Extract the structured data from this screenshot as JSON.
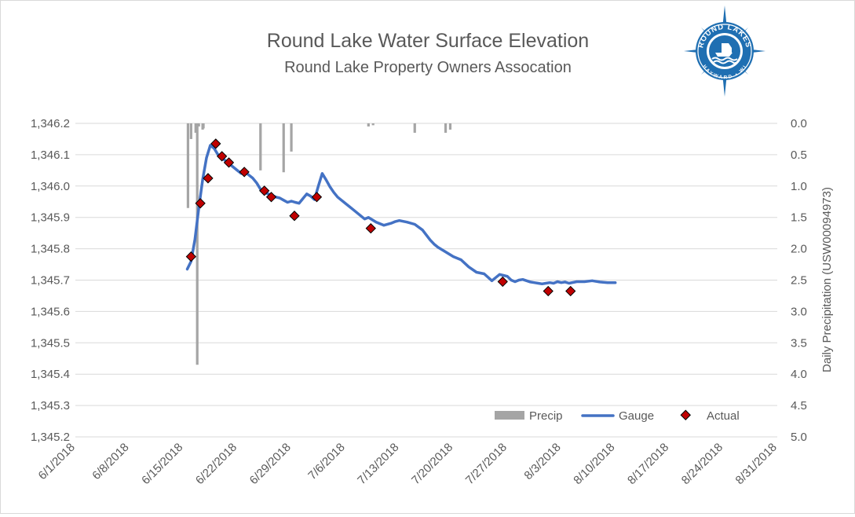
{
  "chart_data": {
    "type": "line",
    "title": "Round Lake Water Surface Elevation",
    "subtitle": "Round Lake Property Owners Assocation",
    "xlabel": "",
    "ylabel": "",
    "y2label": "Daily Precipitation (USW00094973)",
    "x_ticks": [
      "6/1/2018",
      "6/8/2018",
      "6/15/2018",
      "6/22/2018",
      "6/29/2018",
      "7/6/2018",
      "7/13/2018",
      "7/20/2018",
      "7/27/2018",
      "8/3/2018",
      "8/10/2018",
      "8/17/2018",
      "8/24/2018",
      "8/31/2018"
    ],
    "y_ticks": [
      "1,346.2",
      "1,346.1",
      "1,346.0",
      "1,345.9",
      "1,345.8",
      "1,345.7",
      "1,345.6",
      "1,345.5",
      "1,345.4",
      "1,345.3",
      "1,345.2"
    ],
    "y2_ticks": [
      "0.0",
      "0.5",
      "1.0",
      "1.5",
      "2.0",
      "2.5",
      "3.0",
      "3.5",
      "4.0",
      "4.5",
      "5.0"
    ],
    "xlim": [
      0,
      91
    ],
    "ylim": [
      1345.2,
      1346.2
    ],
    "y2lim": [
      0,
      5
    ],
    "y2_inverted": true,
    "grid": true,
    "legend_position": "bottom-right",
    "series": [
      {
        "name": "Precip",
        "kind": "bar",
        "axis": "secondary",
        "color": "#a5a5a5",
        "x": [
          15.6,
          16.0,
          16.6,
          14.6,
          15.0,
          16.5,
          15.8,
          24.0,
          27.0,
          28.0,
          38.0,
          38.6,
          44.0,
          48.0,
          48.6
        ],
        "values": [
          0.15,
          0.05,
          0.08,
          1.35,
          0.25,
          0.1,
          3.85,
          0.75,
          0.78,
          0.45,
          0.05,
          0.03,
          0.15,
          0.15,
          0.1
        ]
      },
      {
        "name": "Gauge",
        "kind": "line",
        "axis": "primary",
        "color": "#4472c4",
        "x": [
          14.5,
          15.0,
          15.5,
          16.0,
          16.5,
          17.0,
          17.5,
          18.0,
          18.5,
          19.0,
          19.5,
          20.0,
          20.5,
          21.0,
          21.5,
          22.0,
          22.5,
          23.0,
          23.5,
          24.0,
          24.5,
          25.0,
          25.5,
          26.0,
          26.5,
          27.0,
          27.5,
          28.0,
          28.5,
          29.0,
          29.5,
          30.0,
          30.5,
          31.0,
          31.5,
          32.0,
          32.5,
          33.0,
          33.5,
          34.0,
          34.5,
          35.0,
          35.5,
          36.0,
          37.0,
          37.5,
          38.0,
          39.0,
          40.0,
          41.0,
          41.5,
          42.0,
          43.0,
          44.0,
          45.0,
          46.0,
          46.5,
          47.0,
          48.0,
          49.0,
          50.0,
          51.0,
          52.0,
          53.0,
          54.0,
          55.0,
          55.5,
          56.0,
          56.5,
          57.0,
          57.5,
          58.0,
          58.5,
          59.0,
          59.5,
          60.0,
          60.5,
          61.0,
          61.5,
          62.0,
          62.5,
          63.0,
          63.5,
          64.0,
          65.0,
          66.0,
          67.0,
          68.0,
          69.0,
          70.0
        ],
        "values": [
          1345.735,
          1345.76,
          1345.83,
          1345.93,
          1346.02,
          1346.09,
          1346.13,
          1346.12,
          1346.1,
          1346.09,
          1346.08,
          1346.07,
          1346.06,
          1346.05,
          1346.04,
          1346.045,
          1346.035,
          1346.025,
          1346.01,
          1345.99,
          1345.98,
          1345.975,
          1345.97,
          1345.965,
          1345.962,
          1345.955,
          1345.948,
          1345.952,
          1345.948,
          1345.945,
          1345.96,
          1345.975,
          1345.968,
          1345.957,
          1346.0,
          1346.04,
          1346.02,
          1345.998,
          1345.98,
          1345.965,
          1345.955,
          1345.945,
          1345.935,
          1345.925,
          1345.905,
          1345.895,
          1345.9,
          1345.885,
          1345.875,
          1345.882,
          1345.887,
          1345.89,
          1345.885,
          1345.878,
          1345.86,
          1345.828,
          1345.815,
          1345.805,
          1345.79,
          1345.775,
          1345.765,
          1345.742,
          1345.725,
          1345.72,
          1345.698,
          1345.718,
          1345.715,
          1345.712,
          1345.7,
          1345.695,
          1345.7,
          1345.702,
          1345.698,
          1345.694,
          1345.692,
          1345.69,
          1345.688,
          1345.69,
          1345.692,
          1345.69,
          1345.695,
          1345.692,
          1345.694,
          1345.69,
          1345.695,
          1345.695,
          1345.698,
          1345.694,
          1345.692,
          1345.692
        ],
        "note_x": []
      },
      {
        "name": "Actual",
        "kind": "scatter",
        "axis": "primary",
        "color": "#c00000",
        "x": [
          15.0,
          16.2,
          17.2,
          18.2,
          19.0,
          19.9,
          21.9,
          24.5,
          25.4,
          28.4,
          31.3,
          38.3,
          55.4,
          61.3,
          64.2
        ],
        "values": [
          1345.775,
          1345.945,
          1346.025,
          1346.135,
          1346.095,
          1346.075,
          1346.045,
          1345.985,
          1345.965,
          1345.905,
          1345.965,
          1345.865,
          1345.695,
          1345.665,
          1345.665
        ]
      }
    ]
  },
  "logo": {
    "top_text": "ROUND LAKES",
    "bottom_text": "HAYWARD • WI",
    "color": "#1f6fb2"
  }
}
